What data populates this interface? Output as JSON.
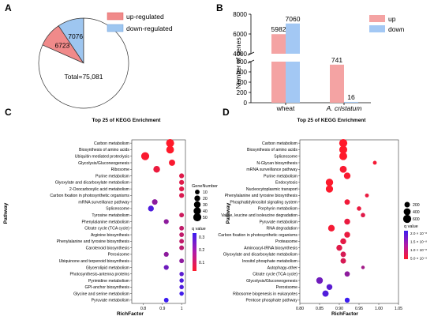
{
  "panels": {
    "A": "A",
    "B": "B",
    "C": "C",
    "D": "D"
  },
  "chart_data": [
    {
      "panel": "A",
      "type": "pie",
      "slices": [
        {
          "name": "up-regulated",
          "value": 6723,
          "color": "#f08a8a"
        },
        {
          "name": "down-regulated",
          "value": 7076,
          "color": "#9ec6f0"
        },
        {
          "name": "",
          "value": 61282,
          "color": "#ffffff"
        }
      ],
      "legend": [
        "up-regulated",
        "down-regulated"
      ],
      "total_label": "Total=75,081",
      "legend_position": "top-right"
    },
    {
      "panel": "B",
      "type": "bar",
      "categories": [
        "wheat",
        "A. cristatum"
      ],
      "series": [
        {
          "name": "up",
          "values": [
            5982,
            741
          ],
          "color": "#f4a3a3"
        },
        {
          "name": "down",
          "values": [
            7060,
            16
          ],
          "color": "#a3c8f4"
        }
      ],
      "ylabel": "Number of genes",
      "y_axis_break": {
        "lower": [
          0,
          800
        ],
        "upper": [
          4000,
          8000
        ]
      },
      "lower_ticks": [
        0,
        200,
        400,
        600,
        800
      ],
      "upper_ticks": [
        4000,
        6000,
        8000
      ],
      "legend_position": "top-right"
    },
    {
      "panel": "C",
      "type": "scatter",
      "title": "Top 25 of KEGG Enrichment",
      "xlabel": "RichFactor",
      "ylabel": "Pathway",
      "xlim": [
        0.74,
        1.02
      ],
      "x_ticks": [
        0.8,
        0.9,
        1.0
      ],
      "size_legend_title": "GeneNumber",
      "size_legend": [
        10,
        20,
        30,
        40,
        50
      ],
      "color_legend_title": "q value",
      "color_legend_ticks": [
        "0.3",
        "0.2",
        "0.1"
      ],
      "points": [
        {
          "pathway": "Carbon metabolism",
          "x": 0.94,
          "size": 50,
          "q": 0.02
        },
        {
          "pathway": "Biosynthesis of amino acids",
          "x": 0.94,
          "size": 45,
          "q": 0.02
        },
        {
          "pathway": "Ubiquitin mediated proteolysis",
          "x": 0.81,
          "size": 50,
          "q": 0.03
        },
        {
          "pathway": "Glycolysis/Gluconeogenesis",
          "x": 0.95,
          "size": 25,
          "q": 0.03
        },
        {
          "pathway": "Ribosome",
          "x": 0.87,
          "size": 30,
          "q": 0.05
        },
        {
          "pathway": "Purine metabolism",
          "x": 1.0,
          "size": 12,
          "q": 0.07
        },
        {
          "pathway": "Glyoxylate and dicarboxylate metabolism",
          "x": 1.0,
          "size": 12,
          "q": 0.07
        },
        {
          "pathway": "2-Oxocarboxylic acid metabolism",
          "x": 1.0,
          "size": 12,
          "q": 0.07
        },
        {
          "pathway": "Carbon fixation in photosynthetic organisms",
          "x": 1.0,
          "size": 12,
          "q": 0.08
        },
        {
          "pathway": "mRNA surveillance pathway",
          "x": 0.86,
          "size": 18,
          "q": 0.2
        },
        {
          "pathway": "Spliceosome",
          "x": 0.84,
          "size": 20,
          "q": 0.3
        },
        {
          "pathway": "Tyrosine metabolism",
          "x": 1.0,
          "size": 10,
          "q": 0.1
        },
        {
          "pathway": "Phenylalanine metabolism",
          "x": 0.92,
          "size": 12,
          "q": 0.2
        },
        {
          "pathway": "Citrate cycle (TCA cycle)",
          "x": 1.0,
          "size": 10,
          "q": 0.12
        },
        {
          "pathway": "Arginine biosynthesis",
          "x": 1.0,
          "size": 10,
          "q": 0.12
        },
        {
          "pathway": "Phenylalanine and tyrosine biosynthesis",
          "x": 1.0,
          "size": 10,
          "q": 0.12
        },
        {
          "pathway": "Carotenoid biosynthesis",
          "x": 1.0,
          "size": 10,
          "q": 0.13
        },
        {
          "pathway": "Peroxisome",
          "x": 0.92,
          "size": 12,
          "q": 0.2
        },
        {
          "pathway": "Ubiquinone and terpenoid biosynthesis",
          "x": 1.0,
          "size": 10,
          "q": 0.2
        },
        {
          "pathway": "Glycerolipid metabolism",
          "x": 0.92,
          "size": 12,
          "q": 0.25
        },
        {
          "pathway": "Photosynthesis-antenna proteins",
          "x": 1.0,
          "size": 8,
          "q": 0.28
        },
        {
          "pathway": "Pyrimidine metabolism",
          "x": 1.0,
          "size": 8,
          "q": 0.3
        },
        {
          "pathway": "GPI-anchor biosynthesis",
          "x": 1.0,
          "size": 8,
          "q": 0.3
        },
        {
          "pathway": "Glycine and serine metabolism",
          "x": 1.0,
          "size": 8,
          "q": 0.32
        },
        {
          "pathway": "Pyruvate metabolism",
          "x": 0.92,
          "size": 10,
          "q": 0.33
        }
      ]
    },
    {
      "panel": "D",
      "type": "scatter",
      "title": "Top 25 of KEGG Enrichment",
      "xlabel": "RichFactor",
      "ylabel": "Pathway",
      "xlim": [
        0.8,
        1.05
      ],
      "x_ticks": [
        "0.80",
        "0.85",
        "0.90",
        "0.95",
        "1.00",
        "1.05"
      ],
      "size_legend_title": "",
      "size_legend": [
        200,
        400,
        600
      ],
      "color_legend_title": "q value",
      "color_legend_ticks": [
        "2.0 × 10⁻⁸",
        "1.5 × 10⁻⁸",
        "1.0 × 10⁻⁸",
        "5.0 × 10⁻⁹"
      ],
      "points": [
        {
          "pathway": "Carbon metabolism",
          "x": 0.91,
          "size": 600,
          "q": 0.05
        },
        {
          "pathway": "Biosynthesis of amino acids",
          "x": 0.91,
          "size": 580,
          "q": 0.05
        },
        {
          "pathway": "Spliceosome",
          "x": 0.91,
          "size": 560,
          "q": 0.05
        },
        {
          "pathway": "N-Glycan biosynthesis",
          "x": 0.99,
          "size": 60,
          "q": 0.1
        },
        {
          "pathway": "mRNA surveillance pathway",
          "x": 0.91,
          "size": 400,
          "q": 0.08
        },
        {
          "pathway": "Purine metabolism",
          "x": 0.92,
          "size": 350,
          "q": 0.08
        },
        {
          "pathway": "Endocytosis",
          "x": 0.875,
          "size": 480,
          "q": 0.06
        },
        {
          "pathway": "Nucleocytoplasmic transport",
          "x": 0.875,
          "size": 450,
          "q": 0.06
        },
        {
          "pathway": "Phenylalanine and tyrosine biosynthesis",
          "x": 0.97,
          "size": 60,
          "q": 0.15
        },
        {
          "pathway": "Phosphatidylinositol signaling system",
          "x": 0.92,
          "size": 200,
          "q": 0.12
        },
        {
          "pathway": "Porphyrin metabolism",
          "x": 0.95,
          "size": 100,
          "q": 0.15
        },
        {
          "pathway": "Valine, leucine and isoleucine degradation",
          "x": 0.96,
          "size": 100,
          "q": 0.2
        },
        {
          "pathway": "Pyruvate metabolism",
          "x": 0.92,
          "size": 250,
          "q": 0.15
        },
        {
          "pathway": "RNA degradation",
          "x": 0.88,
          "size": 350,
          "q": 0.1
        },
        {
          "pathway": "Carbon fixation in photosynthetic organisms",
          "x": 0.92,
          "size": 250,
          "q": 0.15
        },
        {
          "pathway": "Proteasome",
          "x": 0.91,
          "size": 250,
          "q": 0.18
        },
        {
          "pathway": "Aminoacyl-tRNA biosynthesis",
          "x": 0.9,
          "size": 250,
          "q": 0.2
        },
        {
          "pathway": "Glyoxylate and dicarboxylate metabolism",
          "x": 0.91,
          "size": 200,
          "q": 0.25
        },
        {
          "pathway": "Inositol phosphate metabolism",
          "x": 0.91,
          "size": 200,
          "q": 0.25
        },
        {
          "pathway": "Autophagy-other",
          "x": 0.96,
          "size": 40,
          "q": 0.5
        },
        {
          "pathway": "Citrate cycle (TCA cycle)",
          "x": 0.92,
          "size": 180,
          "q": 0.6
        },
        {
          "pathway": "Glycolysis/Gluconeogenesis",
          "x": 0.85,
          "size": 350,
          "q": 0.75
        },
        {
          "pathway": "Peroxisome",
          "x": 0.875,
          "size": 250,
          "q": 0.85
        },
        {
          "pathway": "Ribosome biogenesis in eukaryotes",
          "x": 0.865,
          "size": 300,
          "q": 0.9
        },
        {
          "pathway": "Pentose phosphate pathway",
          "x": 0.92,
          "size": 150,
          "q": 1.0
        }
      ]
    }
  ]
}
